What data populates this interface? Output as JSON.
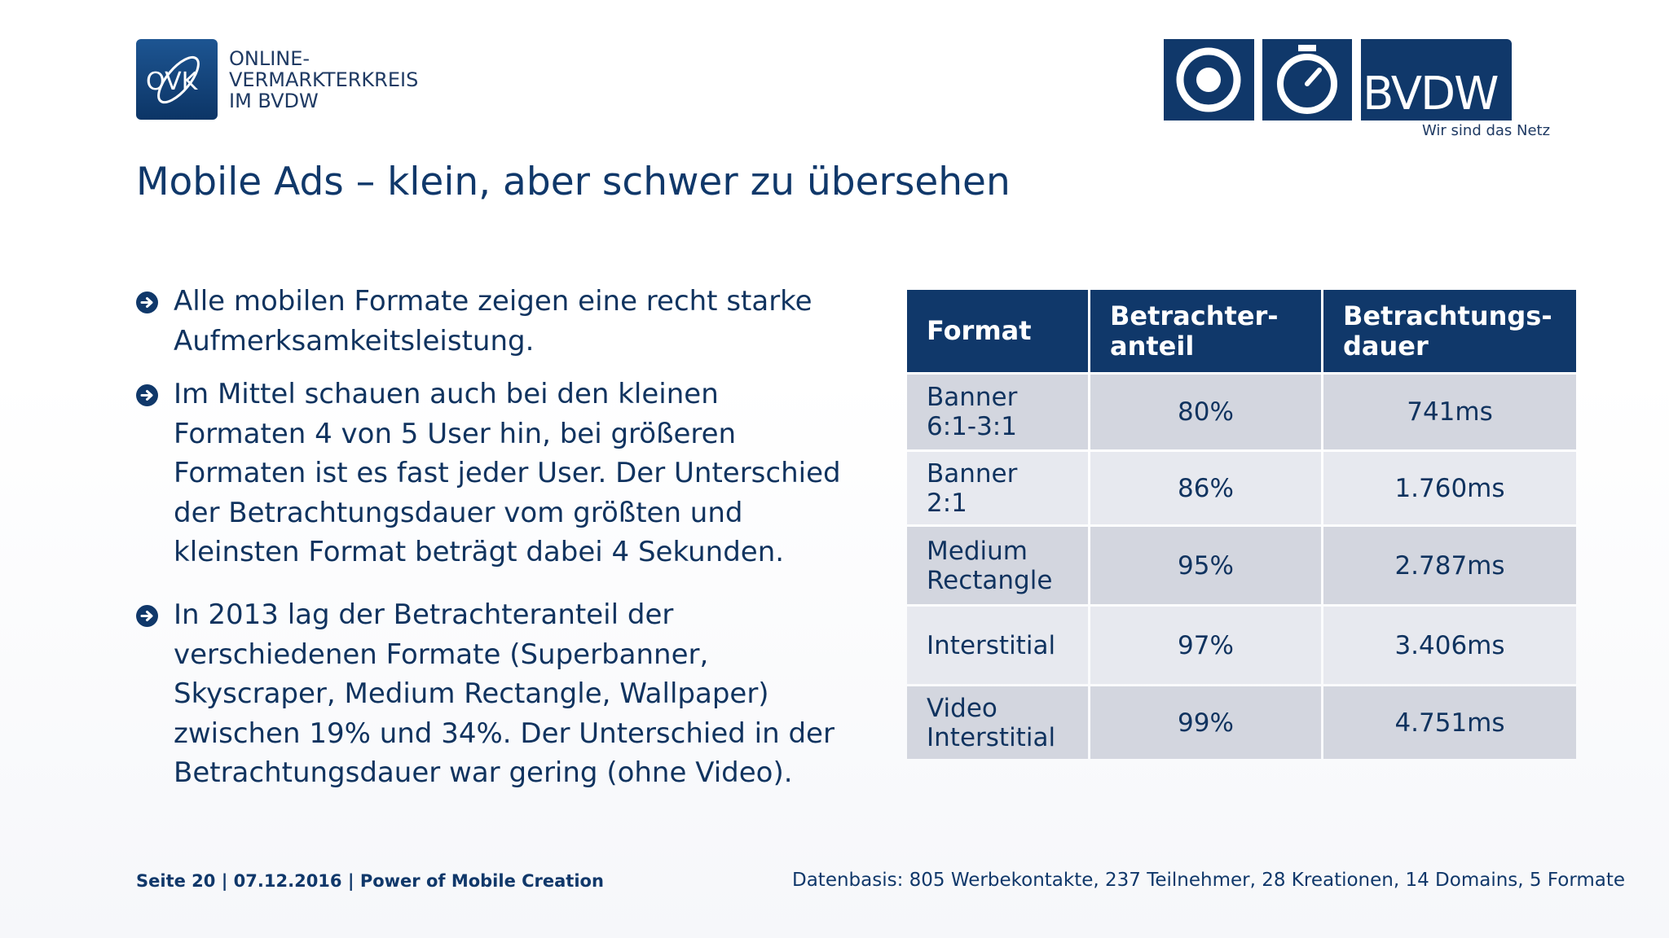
{
  "logos": {
    "ovk": {
      "mark_text": "OVK",
      "lines": [
        "ONLINE-",
        "VERMARKTERKREIS",
        "IM BVDW"
      ]
    },
    "bvdw": {
      "word": "BVDW",
      "tagline": "Wir sind das Netz"
    }
  },
  "title": "Mobile Ads – klein, aber schwer zu übersehen",
  "bullets": [
    {
      "lines": [
        "Alle mobilen Formate zeigen eine recht starke",
        "Aufmerksamkeitsleistung."
      ]
    },
    {
      "lines": [
        "Im Mittel schauen auch bei den kleinen",
        "Formaten 4 von 5 User hin, bei größeren",
        "Formaten ist es fast jeder User. Der Unterschied",
        "der Betrachtungsdauer vom größten und",
        "kleinsten Format beträgt dabei 4 Sekunden."
      ]
    },
    {
      "lines": [
        "In 2013 lag der Betrachteranteil der",
        "verschiedenen Formate (Superbanner,",
        "Skyscraper, Medium Rectangle, Wallpaper)",
        "zwischen 19% und 34%. Der Unterschied in der",
        "Betrachtungsdauer war gering (ohne Video)."
      ]
    }
  ],
  "table": {
    "headers": [
      "Format",
      "Betrachter-\nanteil",
      "Betrachtungs-\ndauer"
    ],
    "rows": [
      {
        "format": "Banner\n6:1-3:1",
        "share": "80%",
        "duration": "741ms"
      },
      {
        "format": "Banner\n2:1",
        "share": "86%",
        "duration": "1.760ms"
      },
      {
        "format": "Medium\nRectangle",
        "share": "95%",
        "duration": "2.787ms"
      },
      {
        "format": "Interstitial",
        "share": "97%",
        "duration": "3.406ms"
      },
      {
        "format": "Video\nInterstitial",
        "share": "99%",
        "duration": "4.751ms"
      }
    ]
  },
  "footer": {
    "left": "Seite 20 | 07.12.2016 | Power of Mobile Creation",
    "right": "Datenbasis: 805 Werbekontakte, 237 Teilnehmer, 28 Kreationen, 14 Domains, 5 Formate"
  },
  "colors": {
    "brand_navy": "#10386a",
    "row_dark": "#d3d6df",
    "row_light": "#e7e9ef"
  }
}
